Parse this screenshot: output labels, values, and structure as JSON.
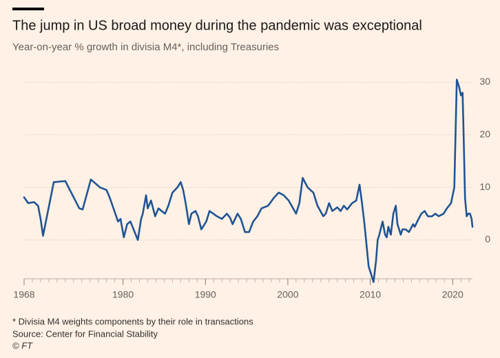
{
  "chart_data": {
    "type": "line",
    "title": "The jump in US broad money during the pandemic was exceptional",
    "subtitle": "Year-on-year % growth in divisia M4*, including Treasuries",
    "footnote": "* Divisia M4 weights components by their role in transactions",
    "source": "Source: Center for Financial Stability",
    "credit": "© FT",
    "x": [
      1968.0,
      1968.5,
      1969.2,
      1969.7,
      1970.0,
      1970.3,
      1971.6,
      1973.0,
      1974.7,
      1975.1,
      1976.1,
      1977.2,
      1978.0,
      1978.4,
      1979.4,
      1979.7,
      1980.1,
      1980.5,
      1980.9,
      1981.8,
      1982.2,
      1982.4,
      1982.8,
      1983.0,
      1983.4,
      1983.9,
      1984.3,
      1985.1,
      1985.5,
      1986.0,
      1986.6,
      1987.0,
      1987.3,
      1987.6,
      1988.0,
      1988.3,
      1988.8,
      1989.1,
      1989.5,
      1990.1,
      1990.5,
      1991.4,
      1992.0,
      1992.6,
      1993.0,
      1993.3,
      1993.9,
      1994.3,
      1994.8,
      1995.3,
      1995.8,
      1996.3,
      1996.8,
      1997.6,
      1998.3,
      1998.9,
      1999.5,
      2000.1,
      2001.0,
      2001.4,
      2001.8,
      2002.4,
      2003.1,
      2003.6,
      2004.3,
      2004.6,
      2005.0,
      2005.4,
      2006.0,
      2006.4,
      2006.8,
      2007.2,
      2007.8,
      2008.3,
      2008.7,
      2009.0,
      2009.3,
      2009.8,
      2010.2,
      2010.4,
      2010.7,
      2010.9,
      2011.1,
      2011.5,
      2011.8,
      2012.0,
      2012.2,
      2012.5,
      2012.8,
      2013.1,
      2013.3,
      2013.7,
      2013.9,
      2014.3,
      2014.7,
      2015.2,
      2015.4,
      2015.7,
      2016.2,
      2016.6,
      2017.0,
      2017.5,
      2017.9,
      2018.3,
      2018.9,
      2019.3,
      2019.8,
      2020.2,
      2020.5,
      2020.8,
      2021.0,
      2021.2,
      2021.3,
      2021.5,
      2021.7,
      2021.9,
      2022.1,
      2022.3,
      2022.4
    ],
    "series": [
      {
        "color": "#1f5394",
        "values": [
          8.1,
          7.0,
          7.2,
          6.5,
          4.0,
          0.8,
          11.0,
          11.2,
          6.0,
          5.8,
          11.5,
          10.0,
          9.5,
          8.0,
          3.5,
          4.0,
          0.5,
          3.0,
          3.5,
          0.0,
          4.0,
          5.0,
          8.5,
          6.0,
          7.5,
          4.5,
          6.0,
          5.0,
          6.5,
          9.0,
          10.0,
          11.0,
          9.5,
          7.0,
          3.0,
          5.0,
          5.5,
          4.5,
          2.0,
          3.5,
          5.5,
          4.5,
          4.0,
          5.0,
          4.2,
          3.0,
          5.0,
          4.0,
          1.5,
          1.5,
          3.5,
          4.5,
          6.0,
          6.5,
          8.0,
          9.0,
          8.5,
          7.5,
          5.0,
          7.0,
          11.8,
          10.0,
          9.0,
          6.5,
          4.5,
          5.0,
          7.0,
          5.5,
          6.2,
          5.5,
          6.5,
          5.8,
          7.0,
          7.5,
          10.5,
          7.0,
          3.0,
          -5.0,
          -7.0,
          -8.0,
          -4.0,
          0.0,
          1.0,
          3.5,
          1.0,
          0.5,
          2.5,
          1.0,
          5.0,
          6.5,
          3.0,
          1.0,
          2.0,
          2.0,
          1.5,
          3.0,
          2.5,
          3.5,
          5.0,
          5.5,
          4.5,
          4.5,
          5.0,
          4.5,
          5.0,
          6.0,
          7.0,
          10.0,
          30.5,
          29.0,
          27.5,
          28.0,
          22.0,
          8.0,
          4.5,
          5.0,
          5.0,
          4.0,
          2.5
        ]
      }
    ],
    "xlim": [
      1968,
      2022.4
    ],
    "xticks": [
      1968,
      1980,
      1990,
      2000,
      2010,
      2020
    ],
    "xminor_ticks": [
      1968,
      1969,
      1970,
      1971,
      1972,
      1973,
      1974,
      1975,
      1976,
      1977,
      1978,
      1979,
      1980,
      1981,
      1982,
      1983,
      1984,
      1985,
      1986,
      1987,
      1988,
      1989,
      1990,
      1991,
      1992,
      1993,
      1994,
      1995,
      1996,
      1997,
      1998,
      1999,
      2000,
      2001,
      2002,
      2003,
      2004,
      2005,
      2006,
      2007,
      2008,
      2009,
      2010,
      2011,
      2012,
      2013,
      2014,
      2015,
      2016,
      2017,
      2018,
      2019,
      2020,
      2021,
      2022
    ],
    "ylim": [
      -7.4,
      31.5
    ],
    "yticks": [
      0,
      10,
      20,
      30
    ],
    "grid": true
  }
}
